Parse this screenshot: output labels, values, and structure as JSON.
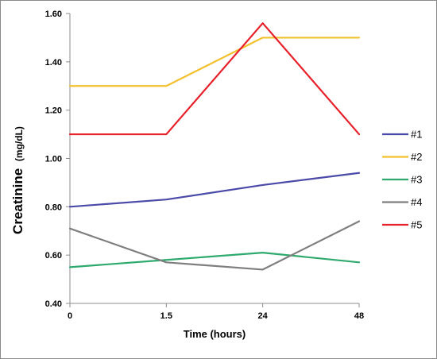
{
  "chart_data": {
    "type": "line",
    "title": "",
    "xlabel": "Time (hours)",
    "ylabel": "Creatinine",
    "ylabel_unit": "(mg/dL)",
    "categories": [
      "0",
      "1.5",
      "24",
      "48"
    ],
    "ylim": [
      0.4,
      1.6
    ],
    "yticks": [
      "0.40",
      "0.60",
      "0.80",
      "1.00",
      "1.20",
      "1.40",
      "1.60"
    ],
    "grid": false,
    "legend_position": "right",
    "series": [
      {
        "name": "#1",
        "color": "#4a4aa8",
        "values": [
          0.8,
          0.83,
          0.89,
          0.94
        ]
      },
      {
        "name": "#2",
        "color": "#f2c12e",
        "values": [
          1.3,
          1.3,
          1.5,
          1.5
        ]
      },
      {
        "name": "#3",
        "color": "#2eaa6e",
        "values": [
          0.55,
          0.58,
          0.61,
          0.57
        ]
      },
      {
        "name": "#4",
        "color": "#7f7f7f",
        "values": [
          0.71,
          0.57,
          0.54,
          0.74
        ]
      },
      {
        "name": "#5",
        "color": "#e8202a",
        "values": [
          1.1,
          1.1,
          1.56,
          1.1
        ]
      }
    ]
  }
}
